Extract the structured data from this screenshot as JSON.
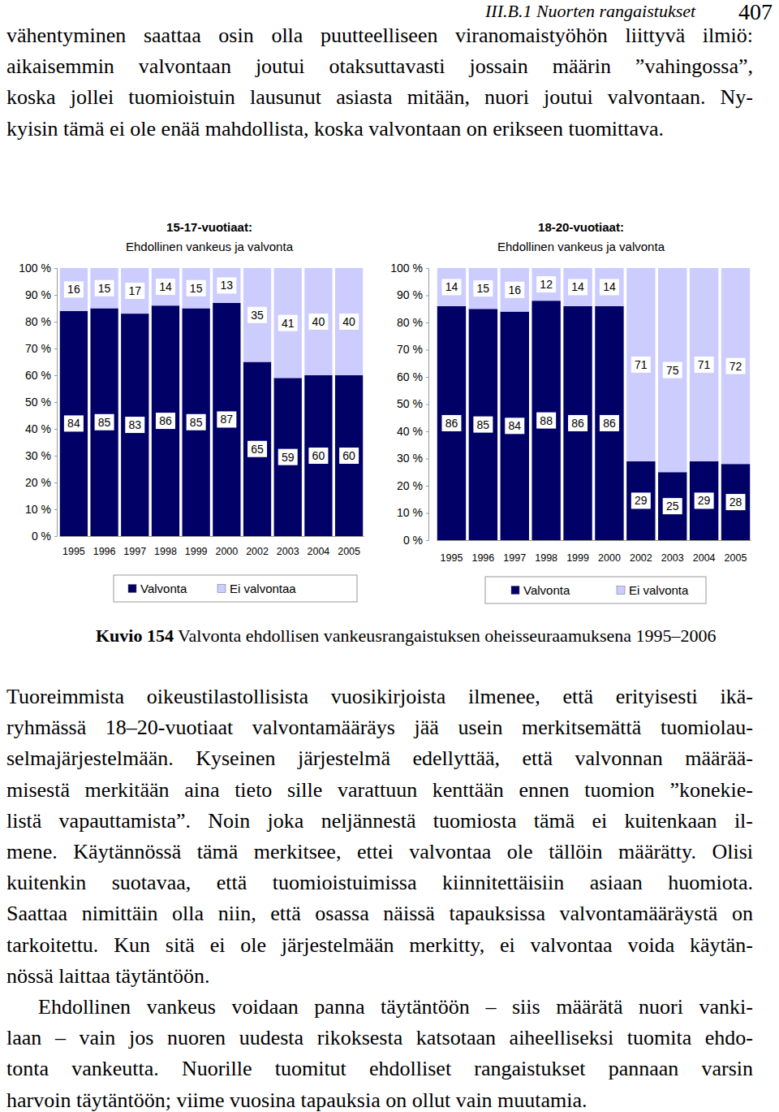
{
  "header": {
    "section": "III.B.1 Nuorten rangaistukset",
    "page": "407"
  },
  "paragraphs_before": [
    [
      "vähentyminen saattaa osin olla puutteelliseen viranomaistyöhön liittyvä ilmiö:",
      "aikaisemmin valvontaan joutui otaksuttavasti jossain määrin ”vahingossa”,",
      "koska jollei tuomioistuin lausunut asiasta mitään, nuori joutui valvontaan. Ny-",
      "kyisin tämä ei ole enää mahdollista, koska valvontaan on erikseen tuomittava."
    ]
  ],
  "chart_data": [
    {
      "type": "bar",
      "stacked": true,
      "data_labels": true,
      "grid": false,
      "legend": "bottom",
      "title": "15-17-vuotiaat:",
      "subtitle": "Ehdollinen vankeus ja valvonta",
      "categories": [
        "1995",
        "1996",
        "1997",
        "1998",
        "1999",
        "2000",
        "2002",
        "2003",
        "2004",
        "2005"
      ],
      "series": [
        {
          "name": "Valvonta",
          "color": "#000066",
          "values": [
            84,
            85,
            83,
            86,
            85,
            87,
            65,
            59,
            60,
            60
          ]
        },
        {
          "name": "Ei valvontaa",
          "color": "#ccccff",
          "values": [
            16,
            15,
            17,
            14,
            15,
            13,
            35,
            41,
            40,
            40
          ]
        }
      ],
      "ylim": [
        0,
        100
      ],
      "yticks": [
        {
          "value": 0,
          "label": "0 %"
        },
        {
          "value": 10,
          "label": "10 %"
        },
        {
          "value": 20,
          "label": "20 %"
        },
        {
          "value": 30,
          "label": "30 %"
        },
        {
          "value": 40,
          "label": "40 %"
        },
        {
          "value": 50,
          "label": "50 %"
        },
        {
          "value": 60,
          "label": "60 %"
        },
        {
          "value": 70,
          "label": "70 %"
        },
        {
          "value": 80,
          "label": "80 %"
        },
        {
          "value": 90,
          "label": "90 %"
        },
        {
          "value": 100,
          "label": "100 %"
        }
      ]
    },
    {
      "type": "bar",
      "stacked": true,
      "data_labels": true,
      "grid": false,
      "legend": "bottom",
      "title": "18-20-vuotiaat:",
      "subtitle": "Ehdollinen vankeus ja valvonta",
      "categories": [
        "1995",
        "1996",
        "1997",
        "1998",
        "1999",
        "2000",
        "2002",
        "2003",
        "2004",
        "2005"
      ],
      "series": [
        {
          "name": "Valvonta",
          "color": "#000066",
          "values": [
            86,
            85,
            84,
            88,
            86,
            86,
            29,
            25,
            29,
            28
          ]
        },
        {
          "name": "Ei valvonta",
          "color": "#ccccff",
          "values": [
            14,
            15,
            16,
            12,
            14,
            14,
            71,
            75,
            71,
            72
          ]
        }
      ],
      "ylim": [
        0,
        100
      ],
      "yticks": [
        {
          "value": 0,
          "label": "0 %"
        },
        {
          "value": 10,
          "label": "10 %"
        },
        {
          "value": 20,
          "label": "20 %"
        },
        {
          "value": 30,
          "label": "30 %"
        },
        {
          "value": 40,
          "label": "40 %"
        },
        {
          "value": 50,
          "label": "50 %"
        },
        {
          "value": 60,
          "label": "60 %"
        },
        {
          "value": 70,
          "label": "70 %"
        },
        {
          "value": 80,
          "label": "80 %"
        },
        {
          "value": 90,
          "label": "90 %"
        },
        {
          "value": 100,
          "label": "100 %"
        }
      ]
    }
  ],
  "caption": {
    "label": "Kuvio 154",
    "text": "Valvonta ehdollisen vankeusrangaistuksen oheisseuraamuksena 1995–2006"
  },
  "paragraphs_after": [
    [
      "Tuoreimmista oikeustilastollisista vuosikirjoista ilmenee, että erityisesti ikä-",
      "ryhmässä 18–20-vuotiaat valvontamääräys jää usein merkitsemättä tuomiolau-",
      "selmajärjestelmään. Kyseinen järjestelmä edellyttää, että valvonnan määrää-",
      "misestä merkitään aina tieto sille varattuun kenttään ennen tuomion ”konekie-",
      "listä vapauttamista”. Noin joka neljännestä tuomiosta tämä ei kuitenkaan il-",
      "mene. Käytännössä tämä merkitsee, ettei valvontaa ole tällöin määrätty. Olisi",
      "kuitenkin suotavaa, että tuomioistuimissa kiinnitettäisiin asiaan huomiota.",
      "Saattaa nimittäin olla niin, että osassa näissä tapauksissa valvontamääräystä on",
      "tarkoitettu. Kun sitä ei ole järjestelmään merkitty, ei valvontaa voida käytän-",
      "nössä laittaa täytäntöön."
    ],
    [
      "Ehdollinen vankeus voidaan panna täytäntöön – siis määrätä nuori vanki-",
      "laan – vain jos nuoren uudesta rikoksesta katsotaan aiheelliseksi tuomita ehdo-",
      "tonta vankeutta. Nuorille tuomitut ehdolliset rangaistukset pannaan varsin",
      "harvoin täytäntöön; viime vuosina tapauksia on ollut vain muutamia."
    ]
  ]
}
